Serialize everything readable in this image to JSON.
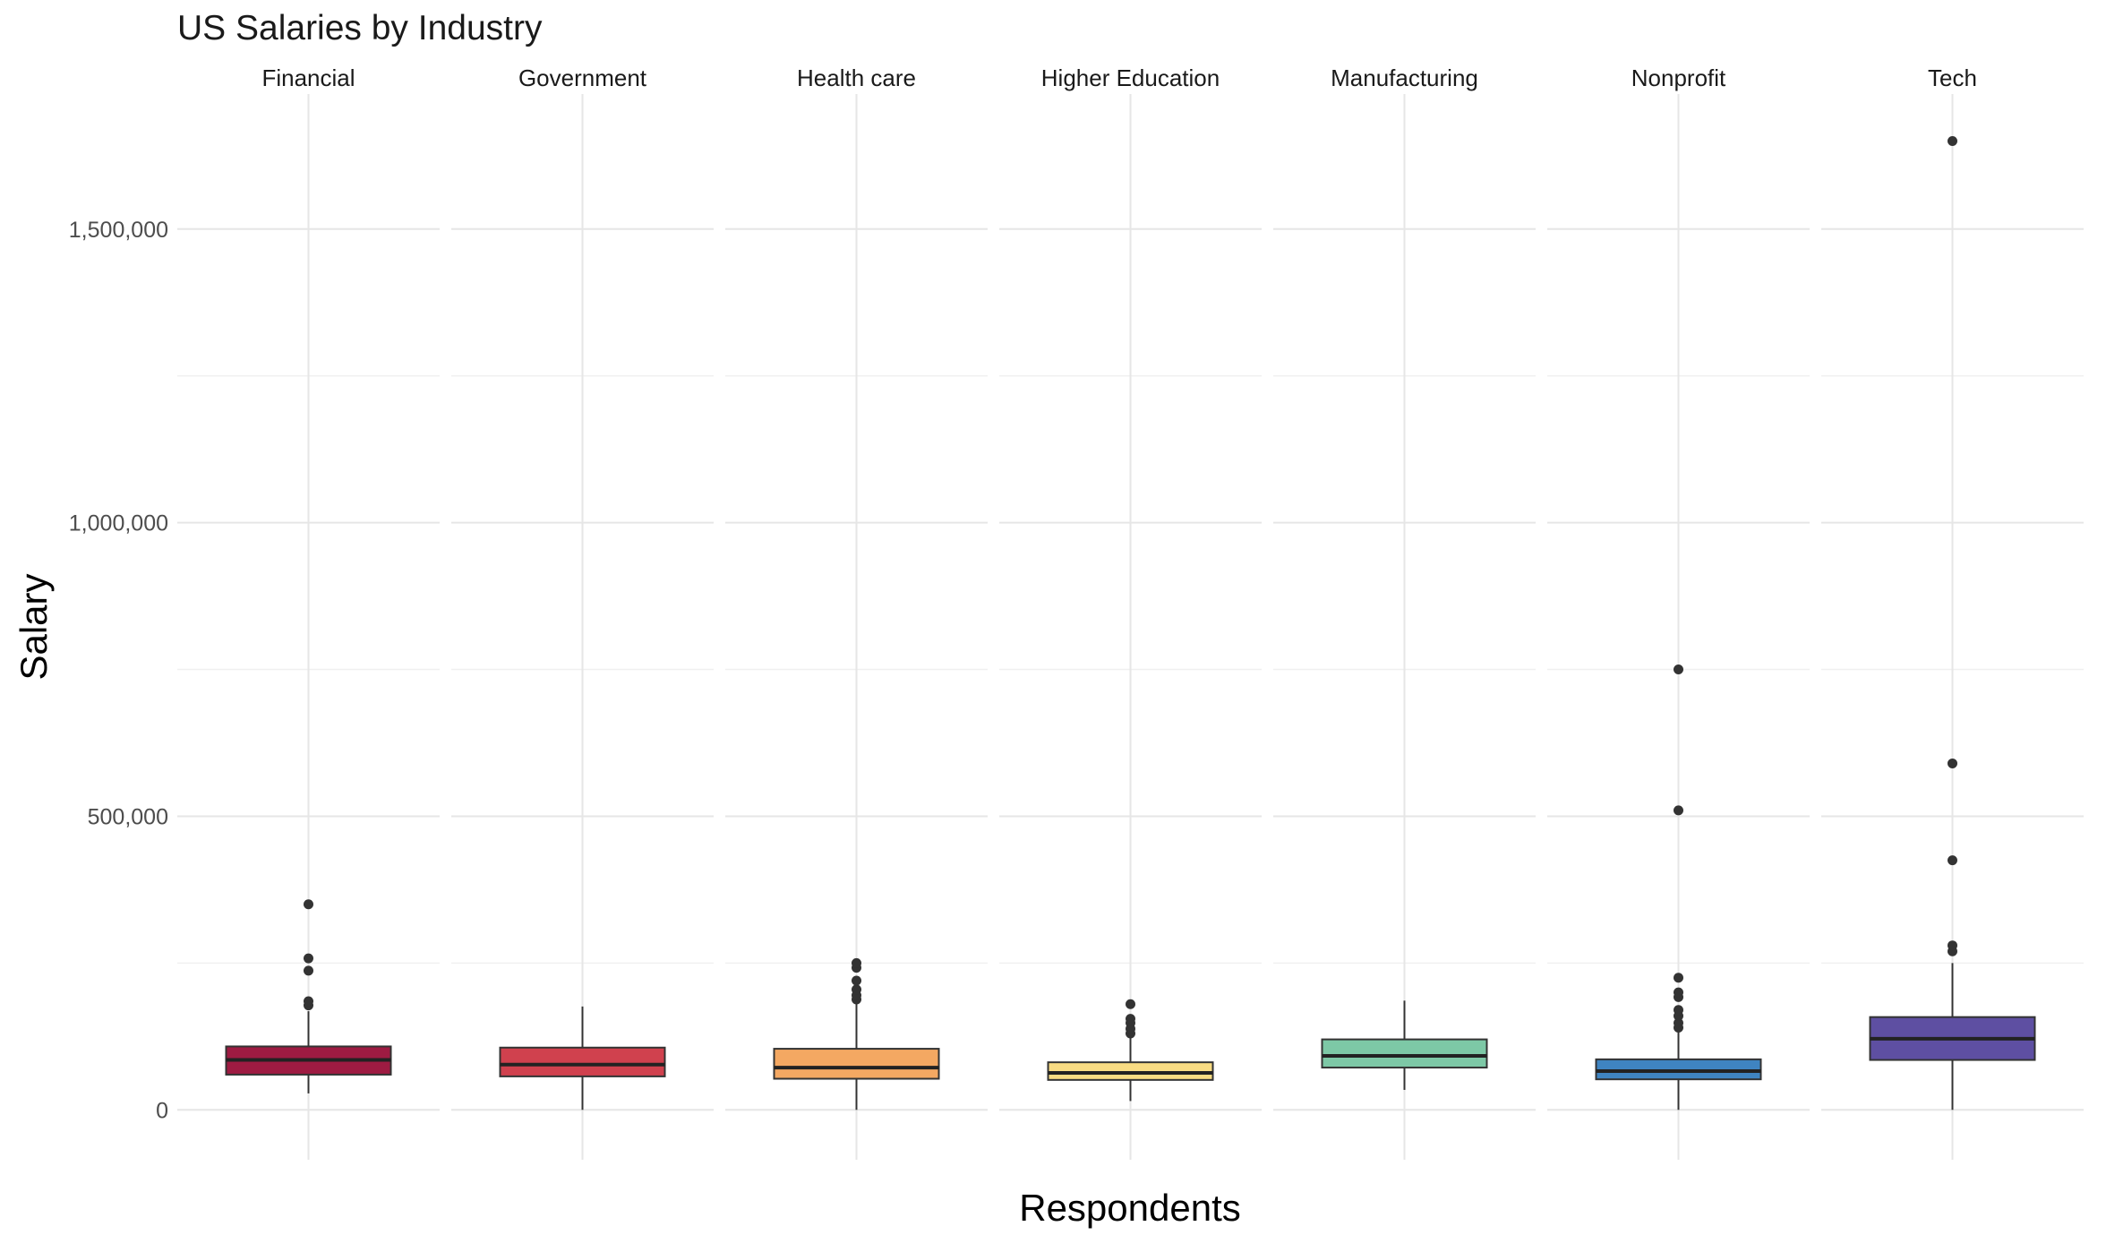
{
  "chart_data": {
    "type": "boxplot",
    "title": "US Salaries by Industry",
    "xlabel": "Respondents",
    "ylabel": "Salary",
    "ylim": [
      -85000,
      1730000
    ],
    "y_ticks": [
      0,
      500000,
      1000000,
      1500000
    ],
    "y_tick_labels": [
      "0",
      "500,000",
      "1,000,000",
      "1,500,000"
    ],
    "grid": true,
    "legend": "none",
    "facets": [
      {
        "name": "Financial",
        "color": "#9e1b42",
        "whisker_low": 28000,
        "q1": 60000,
        "median": 85000,
        "q3": 108000,
        "whisker_high": 168000,
        "outliers": [
          178000,
          185000,
          237000,
          258000,
          350000
        ]
      },
      {
        "name": "Government",
        "color": "#d0414e",
        "whisker_low": 0,
        "q1": 57000,
        "median": 77000,
        "q3": 106000,
        "whisker_high": 176000,
        "outliers": []
      },
      {
        "name": "Health care",
        "color": "#f4a862",
        "whisker_low": 0,
        "q1": 53000,
        "median": 72000,
        "q3": 104000,
        "whisker_high": 185000,
        "outliers": [
          188000,
          195000,
          205000,
          220000,
          242000,
          250000
        ]
      },
      {
        "name": "Higher Education",
        "color": "#f9dc83",
        "whisker_low": 15000,
        "q1": 51000,
        "median": 63000,
        "q3": 81000,
        "whisker_high": 125000,
        "outliers": [
          130000,
          138000,
          148000,
          155000,
          180000
        ]
      },
      {
        "name": "Manufacturing",
        "color": "#7dc8a6",
        "whisker_low": 34000,
        "q1": 72000,
        "median": 92000,
        "q3": 120000,
        "whisker_high": 186000,
        "outliers": []
      },
      {
        "name": "Nonprofit",
        "color": "#3f84c1",
        "whisker_low": 0,
        "q1": 52000,
        "median": 66000,
        "q3": 86000,
        "whisker_high": 135000,
        "outliers": [
          140000,
          148000,
          160000,
          170000,
          192000,
          200000,
          225000,
          510000,
          750000
        ]
      },
      {
        "name": "Tech",
        "color": "#5e4fa2",
        "whisker_low": 0,
        "q1": 85000,
        "median": 121000,
        "q3": 158000,
        "whisker_high": 250000,
        "outliers": [
          270000,
          280000,
          425000,
          590000,
          1650000
        ]
      }
    ]
  }
}
